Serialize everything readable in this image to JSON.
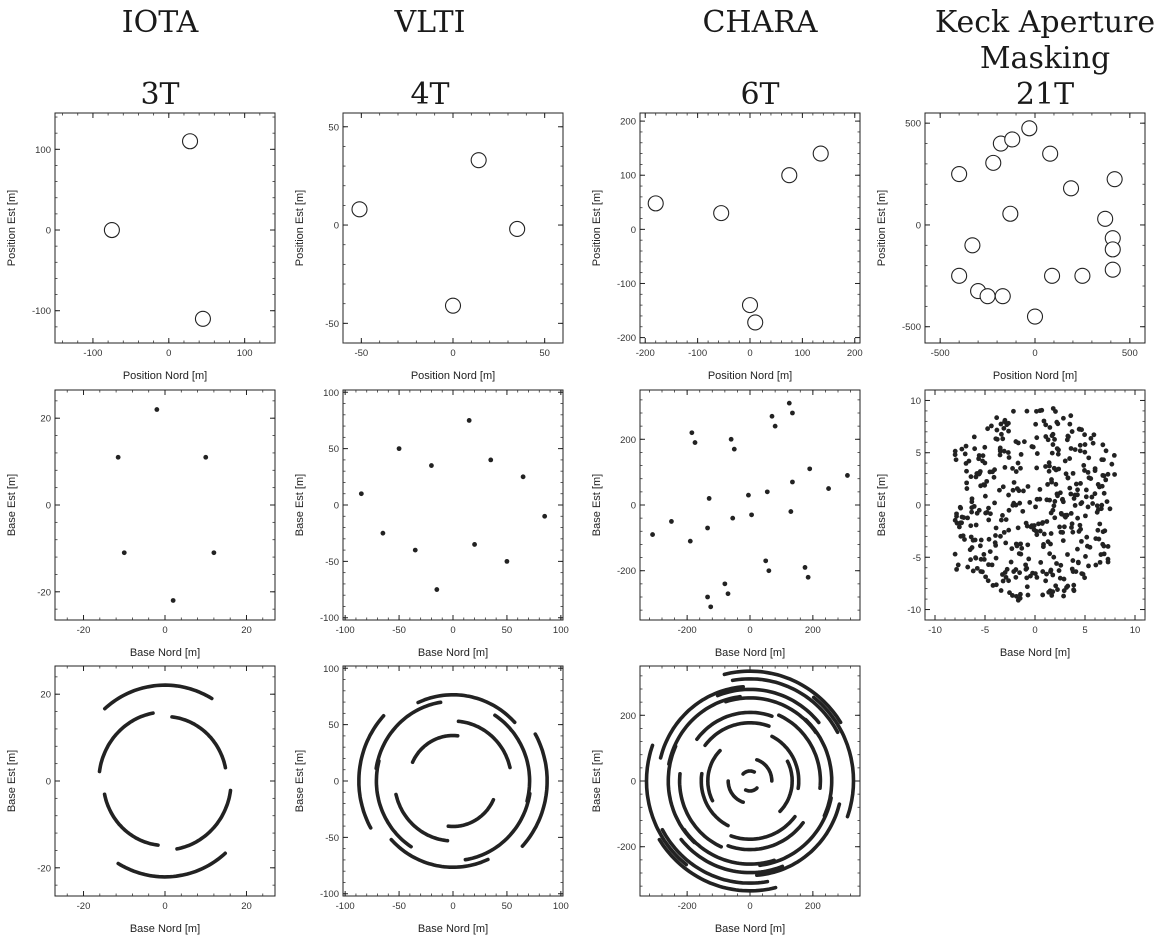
{
  "columns": [
    {
      "name": "IOTA",
      "telescopes": "3T"
    },
    {
      "name": "VLTI",
      "telescopes": "4T"
    },
    {
      "name": "CHARA",
      "telescopes": "6T"
    },
    {
      "name": "Keck Aperture Masking",
      "name_line1": "Keck Aperture",
      "name_line2": "Masking",
      "telescopes": "21T"
    }
  ],
  "chart_data": [
    {
      "id": "iota-positions",
      "type": "scatter",
      "marker": "open-circle",
      "xlabel": "Position Nord [m]",
      "ylabel": "Position Est [m]",
      "xlim": [
        -150,
        140
      ],
      "ylim": [
        -140,
        145
      ],
      "xticks": [
        -100,
        0,
        100
      ],
      "yticks": [
        -100,
        0,
        100
      ],
      "points": [
        [
          28,
          110
        ],
        [
          -75,
          0
        ],
        [
          45,
          -110
        ]
      ]
    },
    {
      "id": "vlti-positions",
      "type": "scatter",
      "marker": "open-circle",
      "xlabel": "Position Nord [m]",
      "ylabel": "Position Est [m]",
      "xlim": [
        -60,
        60
      ],
      "ylim": [
        -60,
        57
      ],
      "xticks": [
        -50,
        0,
        50
      ],
      "yticks": [
        -50,
        0,
        50
      ],
      "points": [
        [
          -51,
          8
        ],
        [
          14,
          33
        ],
        [
          35,
          -2
        ],
        [
          0,
          -41
        ]
      ]
    },
    {
      "id": "chara-positions",
      "type": "scatter",
      "marker": "open-circle",
      "xlabel": "Position Nord [m]",
      "ylabel": "Position Est [m]",
      "xlim": [
        -210,
        210
      ],
      "ylim": [
        -210,
        215
      ],
      "xticks": [
        -200,
        -100,
        0,
        100,
        200
      ],
      "yticks": [
        -200,
        -100,
        0,
        100,
        200
      ],
      "points": [
        [
          -180,
          48
        ],
        [
          -55,
          30
        ],
        [
          75,
          100
        ],
        [
          135,
          140
        ],
        [
          0,
          -140
        ],
        [
          10,
          -172
        ]
      ]
    },
    {
      "id": "keck-positions",
      "type": "scatter",
      "marker": "open-circle",
      "xlabel": "Position Nord [m]",
      "ylabel": "Position Est [m]",
      "xlim": [
        -580,
        580
      ],
      "ylim": [
        -580,
        550
      ],
      "xticks": [
        -500,
        0,
        500
      ],
      "yticks": [
        -500,
        0,
        500
      ],
      "points": [
        [
          -30,
          475
        ],
        [
          -180,
          400
        ],
        [
          -120,
          420
        ],
        [
          -220,
          305
        ],
        [
          80,
          350
        ],
        [
          -400,
          250
        ],
        [
          420,
          225
        ],
        [
          190,
          180
        ],
        [
          -130,
          55
        ],
        [
          370,
          30
        ],
        [
          -330,
          -100
        ],
        [
          410,
          -65
        ],
        [
          410,
          -120
        ],
        [
          -400,
          -250
        ],
        [
          90,
          -250
        ],
        [
          250,
          -250
        ],
        [
          410,
          -220
        ],
        [
          -300,
          -325
        ],
        [
          -250,
          -350
        ],
        [
          -170,
          -350
        ],
        [
          0,
          -450
        ]
      ]
    },
    {
      "id": "iota-baselines",
      "type": "scatter",
      "marker": "dot",
      "xlabel": "Base Nord [m]",
      "ylabel": "Base Est [m]",
      "xlim": [
        -27,
        27
      ],
      "ylim": [
        -26.5,
        26.5
      ],
      "xticks": [
        -20,
        0,
        20
      ],
      "yticks": [
        -20,
        0,
        20
      ],
      "points": [
        [
          -2,
          22
        ],
        [
          -11.5,
          11
        ],
        [
          10,
          11
        ],
        [
          -10,
          -11
        ],
        [
          12,
          -11
        ],
        [
          2,
          -22
        ]
      ]
    },
    {
      "id": "vlti-baselines",
      "type": "scatter",
      "marker": "dot",
      "xlabel": "Base Nord [m]",
      "ylabel": "Base Est [m]",
      "xlim": [
        -102,
        102
      ],
      "ylim": [
        -102,
        102
      ],
      "xticks": [
        -100,
        -50,
        0,
        50,
        100
      ],
      "yticks": [
        -100,
        -50,
        0,
        50,
        100
      ],
      "points": [
        [
          15,
          75
        ],
        [
          -50,
          50
        ],
        [
          -20,
          35
        ],
        [
          35,
          40
        ],
        [
          65,
          25
        ],
        [
          -85,
          10
        ],
        [
          85,
          -10
        ],
        [
          -65,
          -25
        ],
        [
          -35,
          -40
        ],
        [
          20,
          -35
        ],
        [
          50,
          -50
        ],
        [
          -15,
          -75
        ]
      ]
    },
    {
      "id": "chara-baselines",
      "type": "scatter",
      "marker": "dot",
      "xlabel": "Base Nord [m]",
      "ylabel": "Base Est [m]",
      "xlim": [
        -350,
        350
      ],
      "ylim": [
        -350,
        350
      ],
      "xticks": [
        -200,
        0,
        200
      ],
      "yticks": [
        -200,
        0,
        200
      ],
      "points": [
        [
          -185,
          220
        ],
        [
          -175,
          190
        ],
        [
          -60,
          200
        ],
        [
          -50,
          170
        ],
        [
          70,
          270
        ],
        [
          80,
          240
        ],
        [
          125,
          310
        ],
        [
          135,
          280
        ],
        [
          -310,
          -90
        ],
        [
          -250,
          -50
        ],
        [
          -130,
          20
        ],
        [
          -135,
          -70
        ],
        [
          -190,
          -110
        ],
        [
          -55,
          -40
        ],
        [
          -5,
          30
        ],
        [
          5,
          -30
        ],
        [
          55,
          40
        ],
        [
          135,
          70
        ],
        [
          130,
          -20
        ],
        [
          250,
          50
        ],
        [
          310,
          90
        ],
        [
          190,
          110
        ],
        [
          -135,
          -280
        ],
        [
          -125,
          -310
        ],
        [
          -80,
          -240
        ],
        [
          -70,
          -270
        ],
        [
          50,
          -170
        ],
        [
          60,
          -200
        ],
        [
          175,
          -190
        ],
        [
          185,
          -220
        ]
      ]
    },
    {
      "id": "keck-baselines",
      "type": "scatter",
      "marker": "dot",
      "xlabel": "Base Nord [m]",
      "ylabel": "Base Est [m]",
      "xlim": [
        -11,
        11
      ],
      "ylim": [
        -11,
        11
      ],
      "xticks": [
        -10,
        -5,
        0,
        5,
        10
      ],
      "yticks": [
        -10,
        -5,
        0,
        5,
        10
      ],
      "points": "420 baseline points (21T, ±u,v) within a disk of radius ~9.3 m",
      "extent": {
        "nord": [
          -8,
          8
        ],
        "est": [
          -9.3,
          9.3
        ]
      }
    },
    {
      "id": "iota-coverage",
      "type": "line",
      "style": "thick-arcs",
      "xlabel": "Base Nord [m]",
      "ylabel": "Base Est [m]",
      "xlim": [
        -27,
        27
      ],
      "ylim": [
        -26.5,
        26.5
      ],
      "xticks": [
        -20,
        0,
        20
      ],
      "yticks": [
        -20,
        0,
        20
      ],
      "baselines": [
        [
          -2,
          22
        ],
        [
          -11.5,
          11
        ],
        [
          10,
          11
        ]
      ]
    },
    {
      "id": "vlti-coverage",
      "type": "line",
      "style": "thick-arcs",
      "xlabel": "Base Nord [m]",
      "ylabel": "Base Est [m]",
      "xlim": [
        -102,
        102
      ],
      "ylim": [
        -102,
        102
      ],
      "xticks": [
        -100,
        -50,
        0,
        50,
        100
      ],
      "yticks": [
        -100,
        -50,
        0,
        50,
        100
      ],
      "baselines": [
        [
          15,
          75
        ],
        [
          -50,
          50
        ],
        [
          -20,
          35
        ],
        [
          35,
          40
        ],
        [
          65,
          25
        ],
        [
          -85,
          10
        ]
      ]
    },
    {
      "id": "chara-coverage",
      "type": "line",
      "style": "thick-arcs",
      "xlabel": "Base Nord [m]",
      "ylabel": "Base Est [m]",
      "xlim": [
        -350,
        350
      ],
      "ylim": [
        -350,
        350
      ],
      "xticks": [
        -200,
        0,
        200
      ],
      "yticks": [
        -200,
        0,
        200
      ],
      "baselines": [
        [
          -185,
          220
        ],
        [
          -60,
          200
        ],
        [
          70,
          270
        ],
        [
          125,
          310
        ],
        [
          -310,
          -90
        ],
        [
          -130,
          20
        ],
        [
          -55,
          -40
        ],
        [
          135,
          70
        ],
        [
          250,
          50
        ],
        [
          -5,
          30
        ],
        [
          190,
          110
        ],
        [
          -135,
          -280
        ],
        [
          -80,
          -240
        ],
        [
          50,
          -170
        ],
        [
          175,
          -190
        ]
      ]
    }
  ]
}
